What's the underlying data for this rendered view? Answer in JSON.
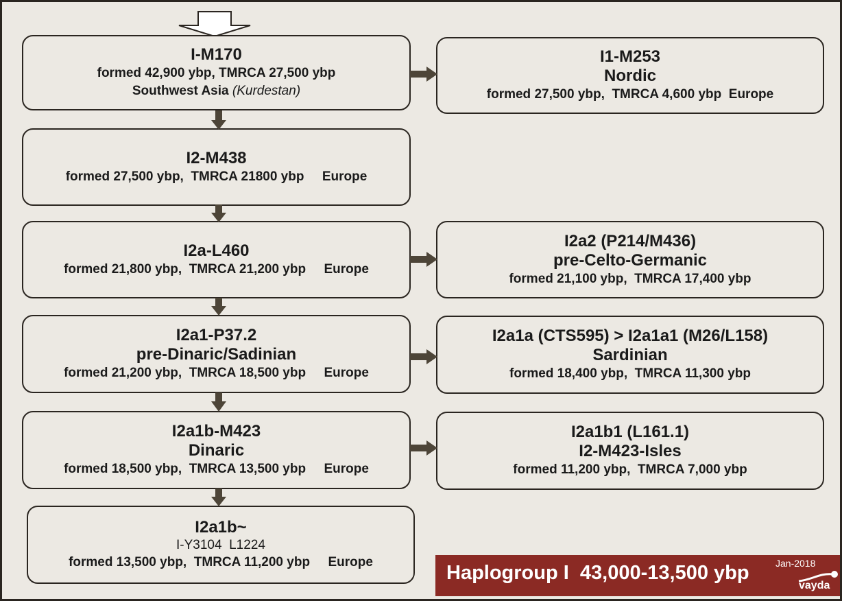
{
  "title_banner": {
    "text": "Haplogroup I  43,000-13,500 ybp",
    "date": "Jan-2018",
    "logo_text": "vayda",
    "color": "#8b2a24"
  },
  "nodes": [
    {
      "id": "i-m170",
      "title": "I-M170",
      "line1": "formed 42,900 ybp, TMRCA 27,500 ybp",
      "region": "Southwest Asia",
      "region_note": "(Kurdestan)"
    },
    {
      "id": "i2-m438",
      "title": "I2-M438",
      "line1": "formed 27,500 ybp,  TMRCA 21800 ybp     Europe"
    },
    {
      "id": "i2a-l460",
      "title": "I2a-L460",
      "line1": "formed 21,800 ybp,  TMRCA 21,200 ybp     Europe"
    },
    {
      "id": "i2a1-p37",
      "title": "I2a1-P37.2",
      "subtitle": "pre-Dinaric/Sadinian",
      "line1": "formed 21,200 ybp,  TMRCA 18,500 ybp     Europe"
    },
    {
      "id": "i2a1b-m423",
      "title": "I2a1b-M423",
      "subtitle": "Dinaric",
      "line1": "formed 18,500 ybp,  TMRCA 13,500 ybp     Europe"
    },
    {
      "id": "i2a1b-tilde",
      "title": "I2a1b~",
      "subtitle": "I-Y3104  L1224",
      "line1": "formed 13,500 ybp,  TMRCA 11,200 ybp     Europe"
    },
    {
      "id": "i1-m253",
      "title": "I1-M253",
      "subtitle": "Nordic",
      "line1": "formed 27,500 ybp,  TMRCA 4,600 ybp  Europe"
    },
    {
      "id": "i2a2",
      "title": "I2a2 (P214/M436)",
      "subtitle": "pre-Celto-Germanic",
      "line1": "formed 21,100 ybp,  TMRCA 17,400 ybp"
    },
    {
      "id": "i2a1a",
      "title": "I2a1a (CTS595) > I2a1a1 (M26/L158)",
      "subtitle": "Sardinian",
      "line1": "formed 18,400 ybp,  TMRCA 11,300 ybp"
    },
    {
      "id": "i2a1b1",
      "title": "I2a1b1 (L161.1)",
      "subtitle": "I2-M423-Isles",
      "line1": "formed 11,200 ybp,  TMRCA 7,000 ybp"
    }
  ],
  "edges": [
    [
      "i-m170",
      "i2-m438"
    ],
    [
      "i2-m438",
      "i2a-l460"
    ],
    [
      "i2a-l460",
      "i2a1-p37"
    ],
    [
      "i2a1-p37",
      "i2a1b-m423"
    ],
    [
      "i2a1b-m423",
      "i2a1b-tilde"
    ],
    [
      "i-m170",
      "i1-m253"
    ],
    [
      "i2a-l460",
      "i2a2"
    ],
    [
      "i2a1-p37",
      "i2a1a"
    ],
    [
      "i2a1b-m423",
      "i2a1b1"
    ]
  ]
}
